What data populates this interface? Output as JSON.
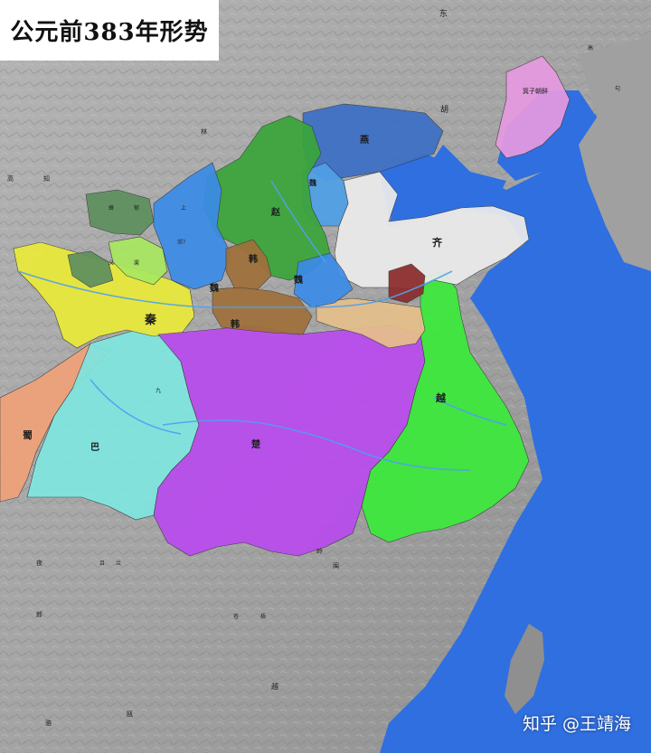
{
  "title": "公元前383年形势",
  "watermark": "知乎 @王靖海",
  "colors": {
    "sea": "#2f6fe0",
    "land": "#a6a6a6",
    "qin": "#eaea3a",
    "shu": "#f0a27a",
    "ba": "#7fe6e0",
    "chu": "#b94bef",
    "yue": "#3bea3b",
    "qi": "#ececec",
    "yan": "#3b6fc5",
    "zhao": "#3aa53a",
    "wei": "#3b8ce8",
    "han": "#a0703a",
    "zhongshan": "#4fa0e6",
    "gojoseon": "#e79ae0",
    "yiqu": "#5e8f5e",
    "baidi": "#a8e860",
    "song": "#e6c08a",
    "lu": "#8b2a2a"
  },
  "states": [
    {
      "name": "秦",
      "id": "qin"
    },
    {
      "name": "蜀",
      "id": "shu"
    },
    {
      "name": "巴",
      "id": "ba"
    },
    {
      "name": "楚",
      "id": "chu"
    },
    {
      "name": "越",
      "id": "yue"
    },
    {
      "name": "齐",
      "id": "qi"
    },
    {
      "name": "燕",
      "id": "yan"
    },
    {
      "name": "赵",
      "id": "zhao"
    },
    {
      "name": "魏",
      "id": "wei1"
    },
    {
      "name": "魏",
      "id": "wei2"
    },
    {
      "name": "韩",
      "id": "han1"
    },
    {
      "name": "韩",
      "id": "han2"
    },
    {
      "name": "魏",
      "id": "wei3"
    },
    {
      "name": "箕子朝鲜",
      "id": "gojoseon"
    }
  ],
  "region_labels": [
    {
      "name": "东",
      "id": "dong"
    },
    {
      "name": "胡",
      "id": "hu"
    },
    {
      "name": "林",
      "id": "lin"
    },
    {
      "name": "高",
      "id": "gao"
    },
    {
      "name": "知",
      "id": "zhi"
    },
    {
      "name": "蜂",
      "id": "feng"
    },
    {
      "name": "郁",
      "id": "yu1"
    },
    {
      "name": "上",
      "id": "shang"
    },
    {
      "name": "郊?",
      "id": "jiao"
    },
    {
      "name": "义",
      "id": "yi"
    },
    {
      "name": "渠",
      "id": "qu"
    },
    {
      "name": "九",
      "id": "jiu"
    },
    {
      "name": "夜",
      "id": "ye"
    },
    {
      "name": "郎",
      "id": "lang"
    },
    {
      "name": "且",
      "id": "qie"
    },
    {
      "name": "兰",
      "id": "lan"
    },
    {
      "name": "苍",
      "id": "cang"
    },
    {
      "name": "梧",
      "id": "wu"
    },
    {
      "name": "越",
      "id": "yue2"
    },
    {
      "name": "岭",
      "id": "ling"
    },
    {
      "name": "闽",
      "id": "min"
    },
    {
      "name": "骆",
      "id": "luo"
    },
    {
      "name": "瓯",
      "id": "ou"
    },
    {
      "name": "高",
      "id": "gao2"
    },
    {
      "name": "句",
      "id": "ju"
    }
  ]
}
